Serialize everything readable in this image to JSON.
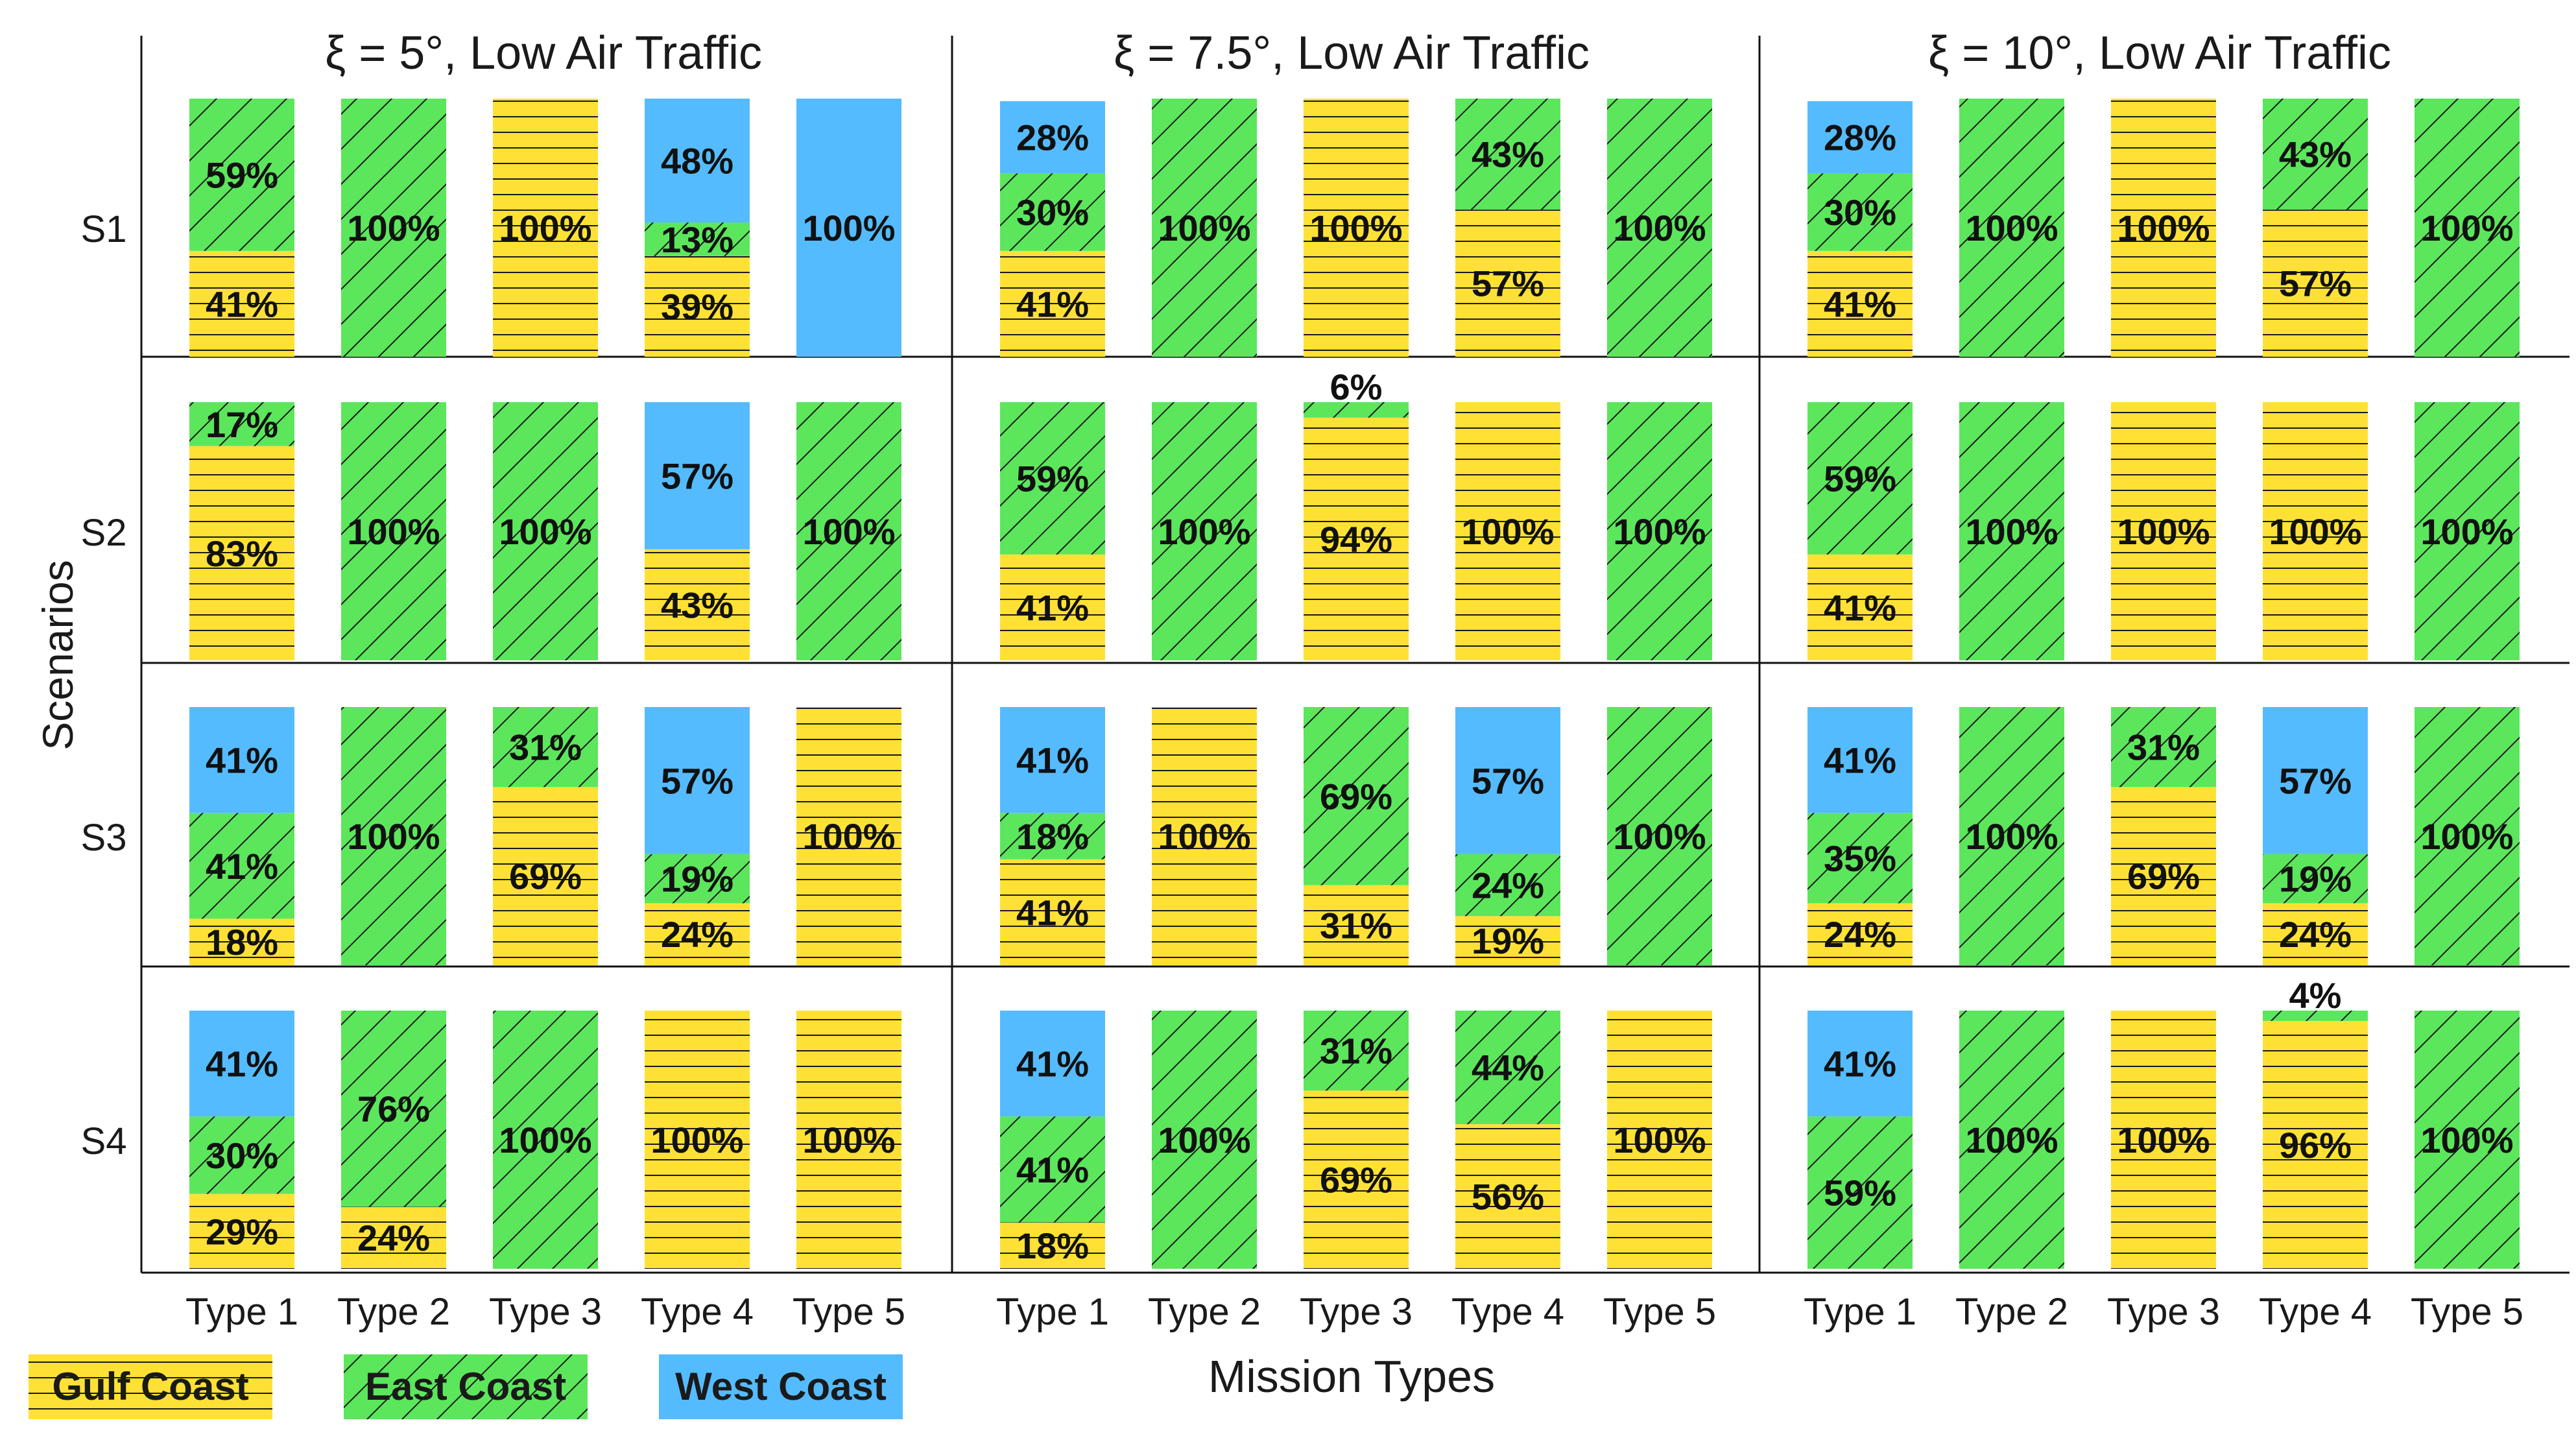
{
  "chart_data": {
    "type": "bar",
    "subtype": "stacked-100-percent-small-multiples",
    "panels": [
      {
        "title": "ξ = 5°, Low Air Traffic"
      },
      {
        "title": "ξ = 7.5°, Low Air Traffic"
      },
      {
        "title": "ξ = 10°, Low Air Traffic"
      }
    ],
    "scenarios": [
      "S1",
      "S2",
      "S3",
      "S4"
    ],
    "categories": [
      "Type 1",
      "Type 2",
      "Type 3",
      "Type 4",
      "Type 5"
    ],
    "xlabel": "Mission Types",
    "ylabel": "Scenarios",
    "series": [
      {
        "name": "Gulf Coast",
        "color": "#ffe135",
        "pattern": "horizontal-lines"
      },
      {
        "name": "East Coast",
        "color": "#5ce65c",
        "pattern": "diagonal-lines"
      },
      {
        "name": "West Coast",
        "color": "#55bbff",
        "pattern": "solid"
      }
    ],
    "data": [
      [
        [
          {
            "gulf": 41,
            "east": 59,
            "west": 0
          },
          {
            "gulf": 0,
            "east": 100,
            "west": 0
          },
          {
            "gulf": 100,
            "east": 0,
            "west": 0
          },
          {
            "gulf": 39,
            "east": 13,
            "west": 48
          },
          {
            "gulf": 0,
            "east": 0,
            "west": 100
          }
        ],
        [
          {
            "gulf": 83,
            "east": 17,
            "west": 0
          },
          {
            "gulf": 0,
            "east": 100,
            "west": 0
          },
          {
            "gulf": 0,
            "east": 100,
            "west": 0
          },
          {
            "gulf": 43,
            "east": 0,
            "west": 57
          },
          {
            "gulf": 0,
            "east": 100,
            "west": 0
          }
        ],
        [
          {
            "gulf": 18,
            "east": 41,
            "west": 41
          },
          {
            "gulf": 0,
            "east": 100,
            "west": 0
          },
          {
            "gulf": 69,
            "east": 31,
            "west": 0
          },
          {
            "gulf": 24,
            "east": 19,
            "west": 57
          },
          {
            "gulf": 100,
            "east": 0,
            "west": 0
          }
        ],
        [
          {
            "gulf": 29,
            "east": 30,
            "west": 41
          },
          {
            "gulf": 24,
            "east": 76,
            "west": 0
          },
          {
            "gulf": 0,
            "east": 100,
            "west": 0
          },
          {
            "gulf": 100,
            "east": 0,
            "west": 0
          },
          {
            "gulf": 100,
            "east": 0,
            "west": 0
          }
        ]
      ],
      [
        [
          {
            "gulf": 41,
            "east": 30,
            "west": 28
          },
          {
            "gulf": 0,
            "east": 100,
            "west": 0
          },
          {
            "gulf": 100,
            "east": 0,
            "west": 0
          },
          {
            "gulf": 57,
            "east": 43,
            "west": 0
          },
          {
            "gulf": 0,
            "east": 100,
            "west": 0
          }
        ],
        [
          {
            "gulf": 41,
            "east": 59,
            "west": 0
          },
          {
            "gulf": 0,
            "east": 100,
            "west": 0
          },
          {
            "gulf": 94,
            "east": 6,
            "west": 0
          },
          {
            "gulf": 100,
            "east": 0,
            "west": 0
          },
          {
            "gulf": 0,
            "east": 100,
            "west": 0
          }
        ],
        [
          {
            "gulf": 41,
            "east": 18,
            "west": 41
          },
          {
            "gulf": 100,
            "east": 0,
            "west": 0
          },
          {
            "gulf": 31,
            "east": 69,
            "west": 0
          },
          {
            "gulf": 19,
            "east": 24,
            "west": 57
          },
          {
            "gulf": 0,
            "east": 100,
            "west": 0
          }
        ],
        [
          {
            "gulf": 18,
            "east": 41,
            "west": 41
          },
          {
            "gulf": 0,
            "east": 100,
            "west": 0
          },
          {
            "gulf": 69,
            "east": 31,
            "west": 0
          },
          {
            "gulf": 56,
            "east": 44,
            "west": 0
          },
          {
            "gulf": 100,
            "east": 0,
            "west": 0
          }
        ]
      ],
      [
        [
          {
            "gulf": 41,
            "east": 30,
            "west": 28
          },
          {
            "gulf": 0,
            "east": 100,
            "west": 0
          },
          {
            "gulf": 100,
            "east": 0,
            "west": 0
          },
          {
            "gulf": 57,
            "east": 43,
            "west": 0
          },
          {
            "gulf": 0,
            "east": 100,
            "west": 0
          }
        ],
        [
          {
            "gulf": 41,
            "east": 59,
            "west": 0
          },
          {
            "gulf": 0,
            "east": 100,
            "west": 0
          },
          {
            "gulf": 100,
            "east": 0,
            "west": 0
          },
          {
            "gulf": 100,
            "east": 0,
            "west": 0
          },
          {
            "gulf": 0,
            "east": 100,
            "west": 0
          }
        ],
        [
          {
            "gulf": 24,
            "east": 35,
            "west": 41
          },
          {
            "gulf": 0,
            "east": 100,
            "west": 0
          },
          {
            "gulf": 69,
            "east": 31,
            "west": 0
          },
          {
            "gulf": 24,
            "east": 19,
            "west": 57
          },
          {
            "gulf": 0,
            "east": 100,
            "west": 0
          }
        ],
        [
          {
            "gulf": 0,
            "east": 59,
            "west": 41
          },
          {
            "gulf": 0,
            "east": 100,
            "west": 0
          },
          {
            "gulf": 100,
            "east": 0,
            "west": 0
          },
          {
            "gulf": 96,
            "east": 4,
            "west": 0
          },
          {
            "gulf": 0,
            "east": 100,
            "west": 0
          }
        ]
      ]
    ],
    "legend": [
      "Gulf Coast",
      "East Coast",
      "West Coast"
    ],
    "legend_position": "bottom-left"
  }
}
